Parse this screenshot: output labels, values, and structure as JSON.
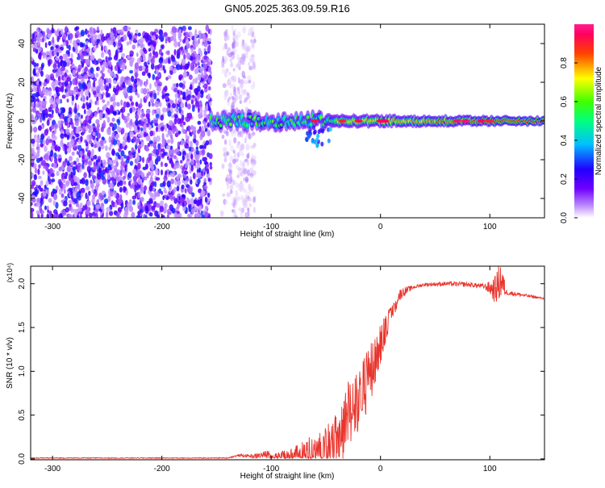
{
  "page_title": "GN05.2025.363.09.59.R16",
  "chart_data": [
    {
      "type": "heatmap",
      "name": "spectrogram",
      "xlabel": "Height of straight line (km)",
      "ylabel": "Frequency (Hz)",
      "xlim": [
        -320,
        150
      ],
      "ylim": [
        -50,
        50
      ],
      "xticks": [
        -300,
        -200,
        -100,
        0,
        100
      ],
      "yticks": [
        -40,
        -20,
        0,
        20,
        40
      ],
      "colorbar": {
        "label": "Normalized spectral amplitude",
        "range": [
          0.0,
          1.0
        ],
        "ticks": [
          0.0,
          0.2,
          0.4,
          0.6,
          0.8
        ],
        "tick_labels": [
          "0.0",
          "0.2",
          "0.4",
          "0.6",
          "0.8"
        ],
        "colormap": [
          "#ffffff",
          "#a070ff",
          "#4000ff",
          "#0000ff",
          "#00ffff",
          "#00ff00",
          "#ffff00",
          "#ff0000",
          "#ff0080"
        ]
      },
      "regions": [
        {
          "kind": "noise",
          "x_range": [
            -320,
            -155
          ],
          "freq_range": [
            -50,
            48
          ],
          "amplitude": [
            0.05,
            0.3
          ]
        },
        {
          "kind": "noise_faint",
          "x_range": [
            -145,
            -115
          ],
          "freq_range": [
            -50,
            48
          ],
          "amplitude": [
            0.02,
            0.1
          ]
        },
        {
          "kind": "signal",
          "x_range": [
            -155,
            150
          ],
          "center_freq": 0,
          "amplitude": [
            0.3,
            1.0
          ]
        }
      ]
    },
    {
      "type": "line",
      "name": "snr",
      "xlabel": "Height of straight line (km)",
      "ylabel": "SNR (10 * v/v)",
      "yscale_label": "(x10⁴)",
      "xlim": [
        -320,
        150
      ],
      "ylim": [
        -0.01,
        2.2
      ],
      "xticks": [
        -300,
        -200,
        -100,
        0,
        100
      ],
      "yticks": [
        0.0,
        0.5,
        1.0,
        1.5,
        2.0
      ],
      "ytick_labels": [
        "0.0",
        "0.5",
        "1.0",
        "1.5",
        "2.0"
      ],
      "color": "#e8352d",
      "envelope_x": [
        -320,
        -140,
        -130,
        -115,
        -100,
        -80,
        -60,
        -40,
        -30,
        -20,
        -10,
        0,
        10,
        20,
        30,
        40,
        60,
        80,
        95,
        105,
        110,
        115,
        130,
        150
      ],
      "envelope_y": [
        0.01,
        0.01,
        0.04,
        0.03,
        0.06,
        0.2,
        0.35,
        0.6,
        1.0,
        1.2,
        1.4,
        1.6,
        1.78,
        1.9,
        1.96,
        1.99,
        2.0,
        1.99,
        1.97,
        1.93,
        2.05,
        1.9,
        1.87,
        1.83
      ],
      "noise_amplitude_x": [
        -320,
        -140,
        -120,
        -100,
        -80,
        -60,
        -40,
        -30,
        -20,
        -10,
        0,
        10,
        30,
        95,
        100,
        110,
        115,
        150
      ],
      "noise_amplitude_y": [
        0.005,
        0.005,
        0.02,
        0.05,
        0.2,
        0.3,
        0.45,
        0.5,
        0.5,
        0.45,
        0.3,
        0.1,
        0.02,
        0.03,
        0.08,
        0.25,
        0.03,
        0.01
      ]
    }
  ]
}
